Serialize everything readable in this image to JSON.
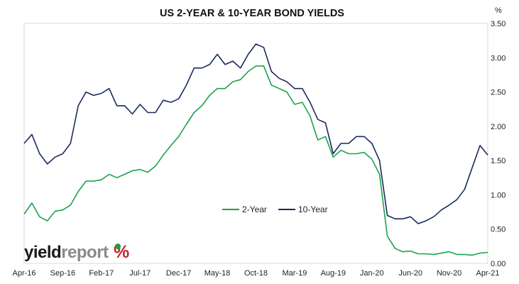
{
  "brand": {
    "logo_text": "yieldreport",
    "logo_symbol": "%",
    "colors": {
      "yield": "#1a1a1a",
      "report": "#8a8a8a",
      "pct_green": "#2a9a3a",
      "pct_red": "#c0282d"
    }
  },
  "chart_data": {
    "type": "line",
    "title": "US 2-YEAR & 10-YEAR BOND YIELDS",
    "ylabel": "%",
    "ylim": [
      0,
      3.5
    ],
    "y_ticks": [
      "0.00",
      "0.50",
      "1.00",
      "1.50",
      "2.00",
      "2.50",
      "3.00",
      "3.50"
    ],
    "y_axis_position": "right",
    "grid": "none",
    "legend_position": "center",
    "x_range": [
      "2016-04",
      "2021-04"
    ],
    "x_ticks": [
      "Apr-16",
      "Sep-16",
      "Feb-17",
      "Jul-17",
      "Dec-17",
      "May-18",
      "Oct-18",
      "Mar-19",
      "Aug-19",
      "Jan-20",
      "Jun-20",
      "Nov-20",
      "Apr-21"
    ],
    "x_tick_dates": [
      "2016-04",
      "2016-09",
      "2017-02",
      "2017-07",
      "2017-12",
      "2018-05",
      "2018-10",
      "2019-03",
      "2019-08",
      "2020-01",
      "2020-06",
      "2020-11",
      "2021-04"
    ],
    "series": [
      {
        "name": "2-Year",
        "color": "#1aa34a",
        "x": [
          "2016-04",
          "2016-05",
          "2016-06",
          "2016-07",
          "2016-08",
          "2016-09",
          "2016-10",
          "2016-11",
          "2016-12",
          "2017-01",
          "2017-02",
          "2017-03",
          "2017-04",
          "2017-05",
          "2017-06",
          "2017-07",
          "2017-08",
          "2017-09",
          "2017-10",
          "2017-11",
          "2017-12",
          "2018-01",
          "2018-02",
          "2018-03",
          "2018-04",
          "2018-05",
          "2018-06",
          "2018-07",
          "2018-08",
          "2018-09",
          "2018-10",
          "2018-11",
          "2018-12",
          "2019-01",
          "2019-02",
          "2019-03",
          "2019-04",
          "2019-05",
          "2019-06",
          "2019-07",
          "2019-08",
          "2019-09",
          "2019-10",
          "2019-11",
          "2019-12",
          "2020-01",
          "2020-02",
          "2020-03",
          "2020-04",
          "2020-05",
          "2020-06",
          "2020-07",
          "2020-08",
          "2020-09",
          "2020-10",
          "2020-11",
          "2020-12",
          "2021-01",
          "2021-02",
          "2021-03",
          "2021-04"
        ],
        "values": [
          0.72,
          0.88,
          0.68,
          0.62,
          0.76,
          0.78,
          0.85,
          1.05,
          1.2,
          1.2,
          1.22,
          1.3,
          1.25,
          1.3,
          1.35,
          1.37,
          1.33,
          1.42,
          1.58,
          1.72,
          1.85,
          2.03,
          2.2,
          2.3,
          2.45,
          2.55,
          2.55,
          2.65,
          2.68,
          2.8,
          2.88,
          2.88,
          2.6,
          2.55,
          2.5,
          2.32,
          2.35,
          2.15,
          1.8,
          1.85,
          1.55,
          1.65,
          1.6,
          1.6,
          1.62,
          1.52,
          1.3,
          0.4,
          0.22,
          0.17,
          0.18,
          0.14,
          0.14,
          0.13,
          0.15,
          0.17,
          0.13,
          0.13,
          0.12,
          0.15,
          0.16
        ]
      },
      {
        "name": "10-Year",
        "color": "#1b2a5e",
        "x": [
          "2016-04",
          "2016-05",
          "2016-06",
          "2016-07",
          "2016-08",
          "2016-09",
          "2016-10",
          "2016-11",
          "2016-12",
          "2017-01",
          "2017-02",
          "2017-03",
          "2017-04",
          "2017-05",
          "2017-06",
          "2017-07",
          "2017-08",
          "2017-09",
          "2017-10",
          "2017-11",
          "2017-12",
          "2018-01",
          "2018-02",
          "2018-03",
          "2018-04",
          "2018-05",
          "2018-06",
          "2018-07",
          "2018-08",
          "2018-09",
          "2018-10",
          "2018-11",
          "2018-12",
          "2019-01",
          "2019-02",
          "2019-03",
          "2019-04",
          "2019-05",
          "2019-06",
          "2019-07",
          "2019-08",
          "2019-09",
          "2019-10",
          "2019-11",
          "2019-12",
          "2020-01",
          "2020-02",
          "2020-03",
          "2020-04",
          "2020-05",
          "2020-06",
          "2020-07",
          "2020-08",
          "2020-09",
          "2020-10",
          "2020-11",
          "2020-12",
          "2021-01",
          "2021-02",
          "2021-03",
          "2021-04"
        ],
        "values": [
          1.75,
          1.88,
          1.6,
          1.45,
          1.55,
          1.6,
          1.75,
          2.3,
          2.5,
          2.45,
          2.48,
          2.55,
          2.3,
          2.3,
          2.18,
          2.32,
          2.2,
          2.2,
          2.38,
          2.35,
          2.4,
          2.6,
          2.85,
          2.85,
          2.9,
          3.05,
          2.9,
          2.95,
          2.85,
          3.05,
          3.2,
          3.15,
          2.8,
          2.7,
          2.65,
          2.55,
          2.55,
          2.35,
          2.1,
          2.05,
          1.6,
          1.75,
          1.75,
          1.85,
          1.85,
          1.75,
          1.5,
          0.7,
          0.65,
          0.65,
          0.68,
          0.58,
          0.62,
          0.68,
          0.78,
          0.85,
          0.93,
          1.08,
          1.4,
          1.72,
          1.58
        ]
      }
    ]
  }
}
